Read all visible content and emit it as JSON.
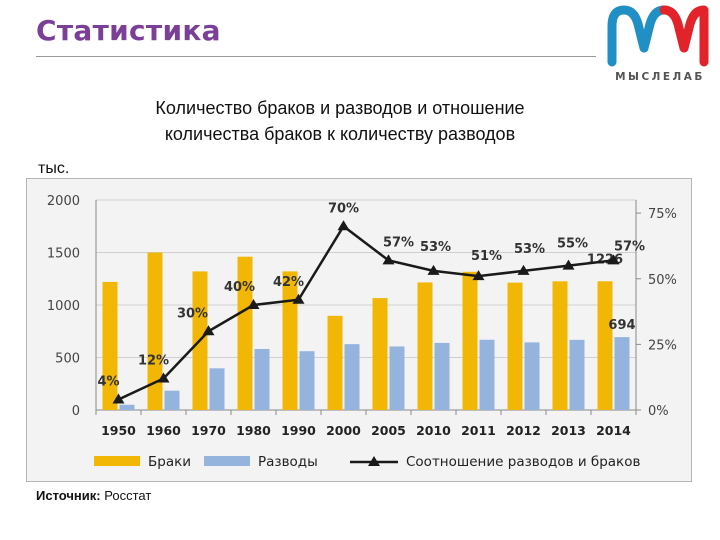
{
  "header": {
    "title": "Статистика",
    "logo_text": "МЫСЛЕЛАБ",
    "logo_colors": [
      "#1f8fc6",
      "#e2232a"
    ]
  },
  "chart_data": {
    "type": "bar+line",
    "title_line1": "Количество браков и разводов и отношение",
    "title_line2": "количества браков к количеству разводов",
    "ylabel": "тыс.",
    "categories": [
      "1950",
      "1960",
      "1970",
      "1980",
      "1990",
      "2000",
      "2005",
      "2010",
      "2011",
      "2012",
      "2013",
      "2014"
    ],
    "series": [
      {
        "name": "Браки",
        "kind": "bar",
        "color": "#f2b705",
        "values": [
          1220,
          1500,
          1320,
          1460,
          1320,
          897,
          1066,
          1215,
          1316,
          1213,
          1226,
          1226
        ]
      },
      {
        "name": "Разводы",
        "kind": "bar",
        "color": "#94b3dd",
        "values": [
          50,
          184,
          397,
          581,
          560,
          627,
          605,
          639,
          669,
          644,
          668,
          694
        ]
      },
      {
        "name": "Соотношение разводов и браков",
        "kind": "line",
        "axis": "right",
        "color": "#1a1a1a",
        "values": [
          4,
          12,
          30,
          40,
          42,
          70,
          57,
          53,
          51,
          53,
          55,
          57
        ],
        "labels": [
          "4%",
          "12%",
          "30%",
          "40%",
          "42%",
          "70%",
          "57%",
          "53%",
          "51%",
          "53%",
          "55%",
          "57%"
        ]
      }
    ],
    "ylim": [
      0,
      2000
    ],
    "yticks": [
      "0",
      "500",
      "1000",
      "1500",
      "2000"
    ],
    "y2lim": [
      0,
      80
    ],
    "y2ticks": [
      {
        "v": 0,
        "label": "0%"
      },
      {
        "v": 25,
        "label": "25%"
      },
      {
        "v": 50,
        "label": "50%"
      },
      {
        "v": 75,
        "label": "75%"
      }
    ],
    "annotations": [
      {
        "text": "1226",
        "series": 0,
        "index": 11
      },
      {
        "text": "694",
        "series": 1,
        "index": 11
      }
    ],
    "legend_position": "bottom"
  },
  "footer": {
    "source_label": "Источник:",
    "source_value": "Росстат"
  }
}
